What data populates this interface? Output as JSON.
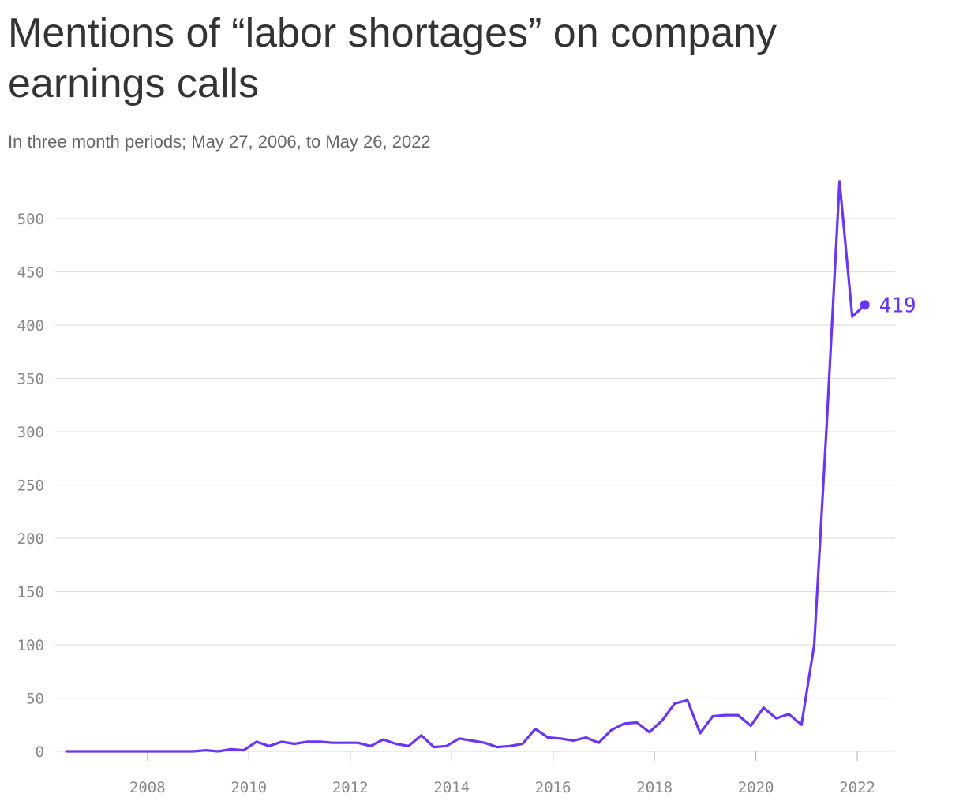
{
  "title": "Mentions of “labor shortages” on company earnings calls",
  "subtitle": "In three month periods; May 27, 2006, to May 26, 2022",
  "colors": {
    "line": "#6a35f5",
    "grid": "#e0e0e0",
    "tick": "#888888",
    "title": "#333333",
    "subtitle": "#666666"
  },
  "chart_data": {
    "type": "line",
    "title": "Mentions of “labor shortages” on company earnings calls",
    "subtitle": "In three month periods; May 27, 2006, to May 26, 2022",
    "xlabel": "",
    "ylabel": "",
    "xlim": [
      2006.4,
      2022.45
    ],
    "ylim": [
      0,
      530
    ],
    "yticks": [
      0,
      50,
      100,
      150,
      200,
      250,
      300,
      350,
      400,
      450,
      500
    ],
    "xticks": [
      2008,
      2010,
      2012,
      2014,
      2016,
      2018,
      2020,
      2022
    ],
    "grid": true,
    "end_label": "419",
    "x": [
      2006.4,
      2006.65,
      2006.9,
      2007.15,
      2007.4,
      2007.65,
      2007.9,
      2008.15,
      2008.4,
      2008.65,
      2008.9,
      2009.15,
      2009.4,
      2009.65,
      2009.9,
      2010.15,
      2010.4,
      2010.65,
      2010.9,
      2011.15,
      2011.4,
      2011.65,
      2011.9,
      2012.15,
      2012.4,
      2012.65,
      2012.9,
      2013.15,
      2013.4,
      2013.65,
      2013.9,
      2014.15,
      2014.4,
      2014.65,
      2014.9,
      2015.15,
      2015.4,
      2015.65,
      2015.9,
      2016.15,
      2016.4,
      2016.65,
      2016.9,
      2017.15,
      2017.4,
      2017.65,
      2017.9,
      2018.15,
      2018.4,
      2018.65,
      2018.9,
      2019.15,
      2019.4,
      2019.65,
      2019.9,
      2020.15,
      2020.4,
      2020.65,
      2020.9,
      2021.15,
      2021.4,
      2021.65,
      2021.9,
      2022.15
    ],
    "y": [
      0,
      0,
      0,
      0,
      0,
      0,
      0,
      0,
      0,
      0,
      0,
      1,
      0,
      2,
      1,
      9,
      5,
      9,
      7,
      9,
      9,
      8,
      8,
      8,
      5,
      11,
      7,
      5,
      15,
      4,
      5,
      12,
      10,
      8,
      4,
      5,
      7,
      21,
      13,
      12,
      10,
      13,
      8,
      20,
      26,
      27,
      18,
      29,
      45,
      48,
      17,
      33,
      34,
      34,
      24,
      41,
      31,
      35,
      25,
      100,
      310,
      535,
      408,
      419
    ]
  }
}
